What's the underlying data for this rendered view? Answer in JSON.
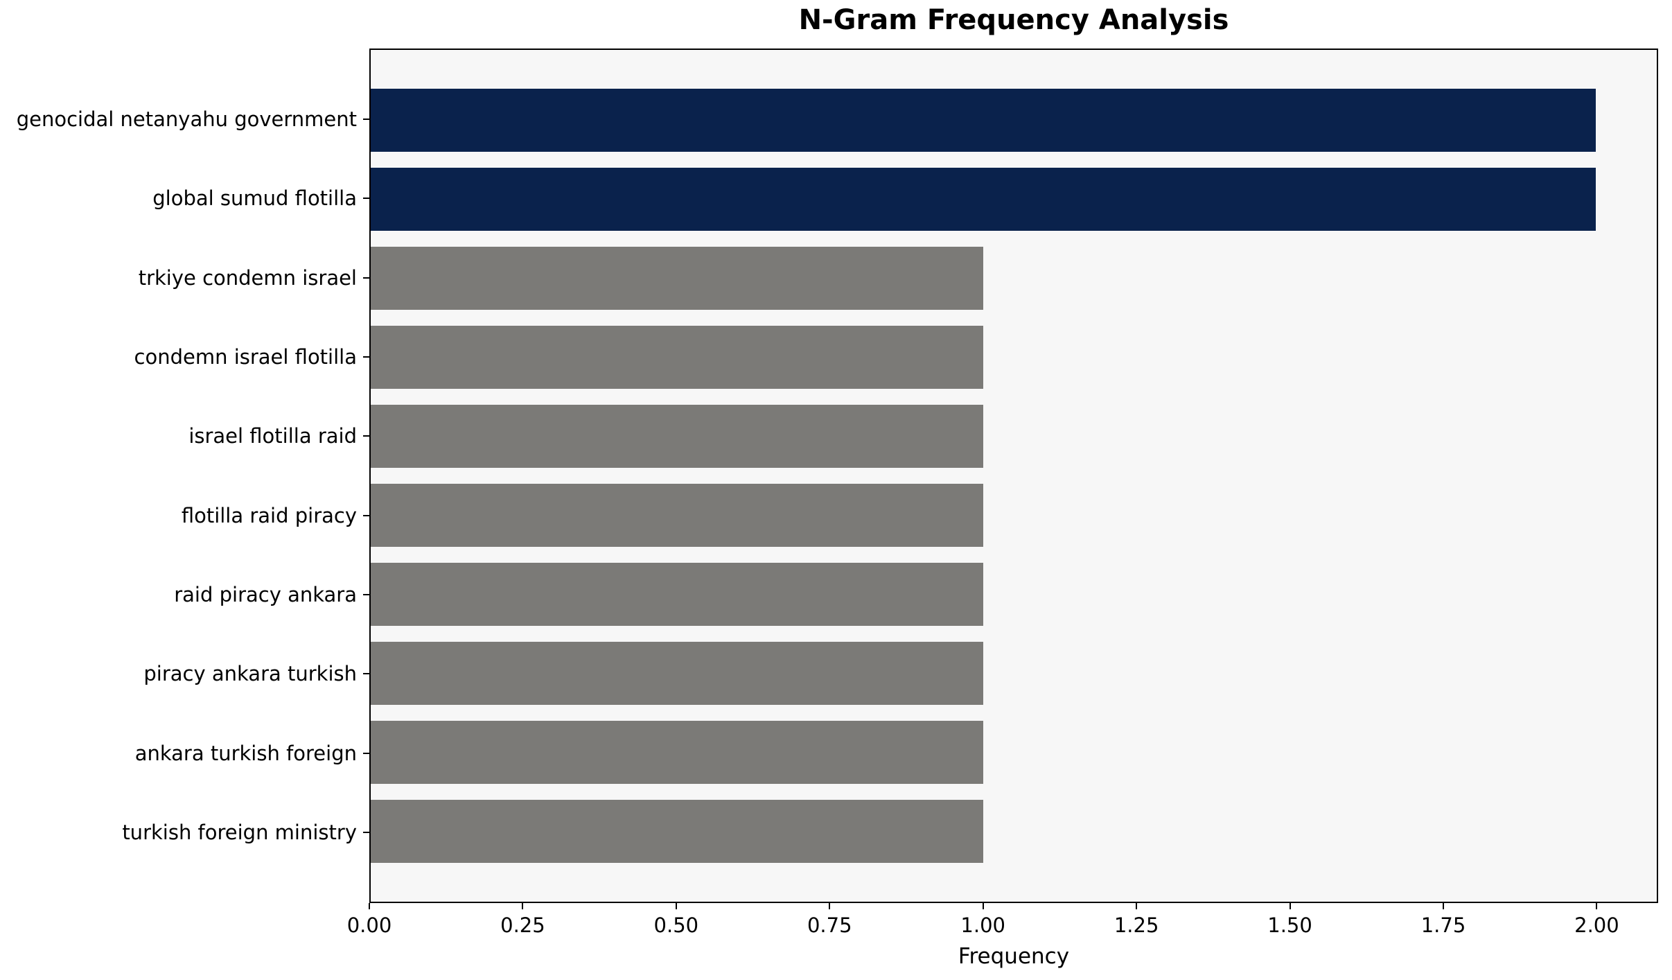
{
  "chart_data": {
    "type": "bar",
    "orientation": "horizontal",
    "title": "N-Gram Frequency Analysis",
    "xlabel": "Frequency",
    "ylabel": "",
    "categories": [
      "genocidal netanyahu government",
      "global sumud flotilla",
      "trkiye condemn israel",
      "condemn israel flotilla",
      "israel flotilla raid",
      "flotilla raid piracy",
      "raid piracy ankara",
      "piracy ankara turkish",
      "ankara turkish foreign",
      "turkish foreign ministry"
    ],
    "values": [
      2,
      2,
      1,
      1,
      1,
      1,
      1,
      1,
      1,
      1
    ],
    "bar_colors": [
      "#0a224c",
      "#0a224c",
      "#7b7a77",
      "#7b7a77",
      "#7b7a77",
      "#7b7a77",
      "#7b7a77",
      "#7b7a77",
      "#7b7a77",
      "#7b7a77"
    ],
    "xlim": [
      0,
      2.1
    ],
    "x_tick_values": [
      0.0,
      0.25,
      0.5,
      0.75,
      1.0,
      1.25,
      1.5,
      1.75,
      2.0
    ],
    "x_tick_labels": [
      "0.00",
      "0.25",
      "0.50",
      "0.75",
      "1.00",
      "1.25",
      "1.50",
      "1.75",
      "2.00"
    ],
    "grid": false,
    "legend": null,
    "plot_background": "#f7f7f7",
    "figure_background": "#ffffff",
    "spine_color": "#000000",
    "text_color": "#000000"
  }
}
